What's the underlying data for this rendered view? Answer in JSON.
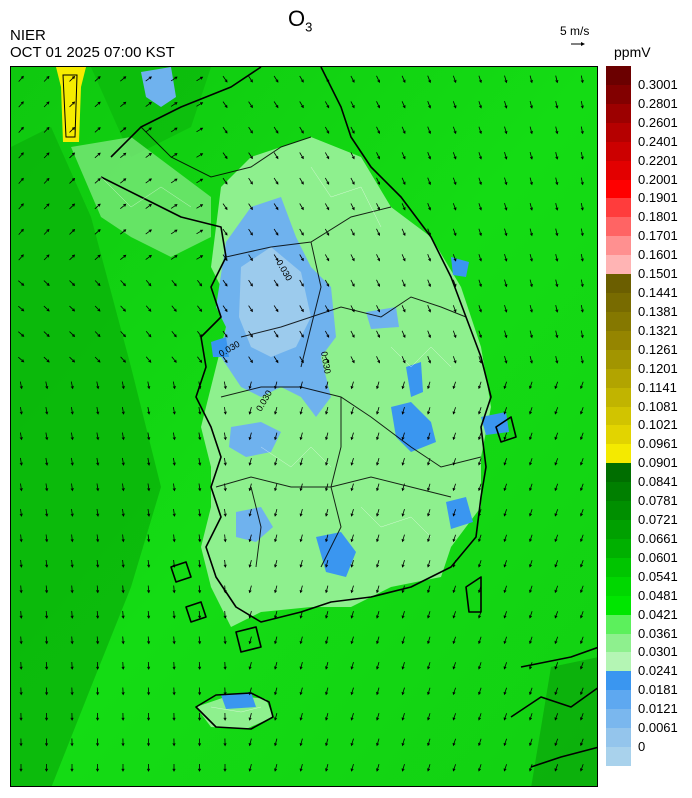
{
  "title": "O",
  "title_sub": "3",
  "agency": "NIER",
  "timestamp": "OCT 01 2025 07:00 KST",
  "wind_reference": {
    "label": "5 m/s"
  },
  "unit": "ppmV",
  "colors": {
    "blue_low": "#9ccbed",
    "blue_mid": "#6fb2ee",
    "blue_high": "#3a96f0",
    "green_light": "#8ef08e",
    "green_mid": "#33e333",
    "green_bright": "#12df12",
    "green_dark": "#0aa40a",
    "yellow": "#f5ec00",
    "coast": "#000000"
  },
  "legend": {
    "labels": [
      "0.3001",
      "0.2801",
      "0.2601",
      "0.2401",
      "0.2201",
      "0.2001",
      "0.1901",
      "0.1801",
      "0.1701",
      "0.1601",
      "0.1501",
      "0.1441",
      "0.1381",
      "0.1321",
      "0.1261",
      "0.1201",
      "0.1141",
      "0.1081",
      "0.1021",
      "0.0961",
      "0.0901",
      "0.0841",
      "0.0781",
      "0.0721",
      "0.0661",
      "0.0601",
      "0.0541",
      "0.0481",
      "0.0421",
      "0.0361",
      "0.0301",
      "0.0241",
      "0.0181",
      "0.0121",
      "0.0061",
      "0"
    ],
    "swatch_colors": [
      "#6b0000",
      "#820000",
      "#9c0000",
      "#b50000",
      "#cc0000",
      "#e30000",
      "#ff0000",
      "#ff3c3c",
      "#ff6464",
      "#ff9090",
      "#ffb4b4",
      "#6b5e00",
      "#786b00",
      "#857800",
      "#958500",
      "#a29500",
      "#b2a400",
      "#c1b400",
      "#d1c400",
      "#e2d400",
      "#f4ea00",
      "#006e00",
      "#007f00",
      "#008f00",
      "#00a000",
      "#00b000",
      "#00c500",
      "#00d700",
      "#00e600",
      "#5cf05c",
      "#8ef08e",
      "#b4f5b4",
      "#3a96f0",
      "#5ea8f0",
      "#7ab7ee",
      "#94c5ec",
      "#a9d2ec"
    ]
  },
  "contour_labels": [
    "0.030",
    "0.030",
    "0.030",
    "0.030"
  ]
}
